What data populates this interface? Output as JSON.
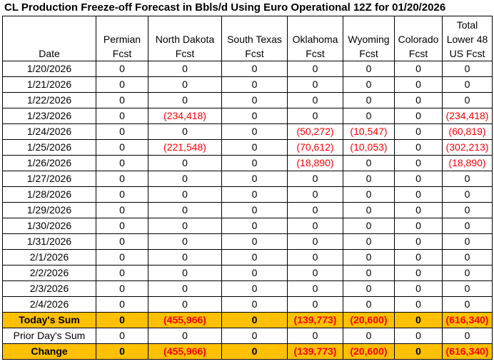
{
  "chart_data": {
    "type": "table",
    "title": "CL Production Freeze-off Forecast in Bbls/d Using Euro Operational 12Z for 01/20/2026",
    "columns": [
      [
        "",
        "",
        "Date"
      ],
      [
        "",
        "Permian",
        "Fcst"
      ],
      [
        "",
        "North Dakota",
        "Fcst"
      ],
      [
        "",
        "South Texas",
        "Fcst"
      ],
      [
        "",
        "Oklahoma",
        "Fcst"
      ],
      [
        "",
        "Wyoming",
        "Fcst"
      ],
      [
        "",
        "Colorado",
        "Fcst"
      ],
      [
        "Total",
        "Lower 48",
        "US Fcst"
      ]
    ],
    "rows": [
      [
        "1/20/2026",
        "0",
        "0",
        "0",
        "0",
        "0",
        "0",
        "0"
      ],
      [
        "1/21/2026",
        "0",
        "0",
        "0",
        "0",
        "0",
        "0",
        "0"
      ],
      [
        "1/22/2026",
        "0",
        "0",
        "0",
        "0",
        "0",
        "0",
        "0"
      ],
      [
        "1/23/2026",
        "0",
        "(234,418)",
        "0",
        "0",
        "0",
        "0",
        "(234,418)"
      ],
      [
        "1/24/2026",
        "0",
        "0",
        "0",
        "(50,272)",
        "(10,547)",
        "0",
        "(60,819)"
      ],
      [
        "1/25/2026",
        "0",
        "(221,548)",
        "0",
        "(70,612)",
        "(10,053)",
        "0",
        "(302,213)"
      ],
      [
        "1/26/2026",
        "0",
        "0",
        "0",
        "(18,890)",
        "0",
        "0",
        "(18,890)"
      ],
      [
        "1/27/2026",
        "0",
        "0",
        "0",
        "0",
        "0",
        "0",
        "0"
      ],
      [
        "1/28/2026",
        "0",
        "0",
        "0",
        "0",
        "0",
        "0",
        "0"
      ],
      [
        "1/29/2026",
        "0",
        "0",
        "0",
        "0",
        "0",
        "0",
        "0"
      ],
      [
        "1/30/2026",
        "0",
        "0",
        "0",
        "0",
        "0",
        "0",
        "0"
      ],
      [
        "1/31/2026",
        "0",
        "0",
        "0",
        "0",
        "0",
        "0",
        "0"
      ],
      [
        "2/1/2026",
        "0",
        "0",
        "0",
        "0",
        "0",
        "0",
        "0"
      ],
      [
        "2/2/2026",
        "0",
        "0",
        "0",
        "0",
        "0",
        "0",
        "0"
      ],
      [
        "2/3/2026",
        "0",
        "0",
        "0",
        "0",
        "0",
        "0",
        "0"
      ],
      [
        "2/4/2026",
        "0",
        "0",
        "0",
        "0",
        "0",
        "0",
        "0"
      ]
    ],
    "todays_sum": [
      "Today's Sum",
      "0",
      "(455,966)",
      "0",
      "(139,773)",
      "(20,600)",
      "0",
      "(616,340)"
    ],
    "prior_day_sum": [
      "Prior Day's Sum",
      "0",
      "0",
      "0",
      "0",
      "0",
      "0",
      "0"
    ],
    "change": [
      "Change",
      "0",
      "(455,966)",
      "0",
      "(139,773)",
      "(20,600)",
      "0",
      "(616,340)"
    ],
    "colors": {
      "negative": "#ff0000",
      "highlight": "#ffc000"
    }
  }
}
